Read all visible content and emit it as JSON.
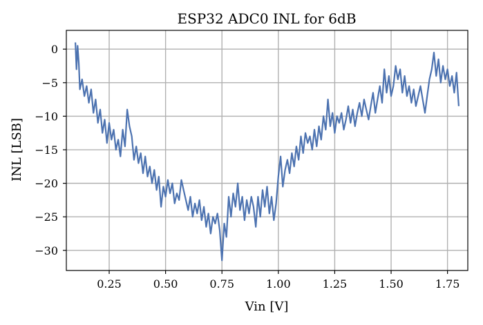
{
  "chart_data": {
    "type": "line",
    "title": "ESP32 ADC0 INL for 6dB",
    "xlabel": "Vin [V]",
    "ylabel": "INL [LSB]",
    "xlim": [
      0.06,
      1.84
    ],
    "ylim": [
      -33,
      2.8
    ],
    "xticks": [
      0.25,
      0.5,
      0.75,
      1.0,
      1.25,
      1.5,
      1.75
    ],
    "xtick_labels": [
      "0.25",
      "0.50",
      "0.75",
      "1.00",
      "1.25",
      "1.50",
      "1.75"
    ],
    "yticks": [
      0,
      -5,
      -10,
      -15,
      -20,
      -25,
      -30
    ],
    "ytick_labels": [
      "0",
      "−5",
      "−10",
      "−15",
      "−20",
      "−25",
      "−30"
    ],
    "grid": true,
    "series": [
      {
        "color": "#4c72b0",
        "x": [
          0.1,
          0.105,
          0.11,
          0.115,
          0.12,
          0.13,
          0.14,
          0.15,
          0.16,
          0.17,
          0.18,
          0.19,
          0.2,
          0.21,
          0.22,
          0.23,
          0.24,
          0.25,
          0.26,
          0.27,
          0.28,
          0.29,
          0.3,
          0.31,
          0.32,
          0.33,
          0.34,
          0.35,
          0.36,
          0.37,
          0.38,
          0.39,
          0.4,
          0.41,
          0.42,
          0.43,
          0.44,
          0.45,
          0.46,
          0.47,
          0.48,
          0.49,
          0.5,
          0.51,
          0.52,
          0.53,
          0.54,
          0.55,
          0.56,
          0.57,
          0.58,
          0.59,
          0.6,
          0.61,
          0.62,
          0.63,
          0.64,
          0.65,
          0.66,
          0.67,
          0.68,
          0.69,
          0.7,
          0.71,
          0.72,
          0.73,
          0.74,
          0.75,
          0.76,
          0.77,
          0.78,
          0.79,
          0.8,
          0.81,
          0.82,
          0.83,
          0.84,
          0.85,
          0.86,
          0.87,
          0.88,
          0.89,
          0.9,
          0.91,
          0.92,
          0.93,
          0.94,
          0.95,
          0.96,
          0.97,
          0.98,
          0.99,
          1.0,
          1.01,
          1.02,
          1.03,
          1.04,
          1.05,
          1.06,
          1.07,
          1.08,
          1.09,
          1.1,
          1.11,
          1.12,
          1.13,
          1.14,
          1.15,
          1.16,
          1.17,
          1.18,
          1.19,
          1.2,
          1.21,
          1.22,
          1.23,
          1.24,
          1.25,
          1.26,
          1.27,
          1.28,
          1.29,
          1.3,
          1.31,
          1.32,
          1.33,
          1.34,
          1.35,
          1.36,
          1.37,
          1.38,
          1.39,
          1.4,
          1.41,
          1.42,
          1.43,
          1.44,
          1.45,
          1.46,
          1.47,
          1.48,
          1.49,
          1.5,
          1.51,
          1.52,
          1.53,
          1.54,
          1.55,
          1.56,
          1.57,
          1.58,
          1.59,
          1.6,
          1.61,
          1.62,
          1.63,
          1.64,
          1.65,
          1.66,
          1.67,
          1.68,
          1.69,
          1.7,
          1.71,
          1.72,
          1.73,
          1.74,
          1.75,
          1.76,
          1.77,
          1.78,
          1.79,
          1.8
        ],
        "values": [
          1.0,
          -3.0,
          0.5,
          -2.0,
          -6.0,
          -4.5,
          -7.0,
          -5.5,
          -8.0,
          -6.0,
          -9.5,
          -7.5,
          -11.0,
          -9.0,
          -12.5,
          -10.5,
          -14.0,
          -11.0,
          -13.5,
          -12.0,
          -15.0,
          -13.5,
          -16.0,
          -12.0,
          -14.5,
          -9.0,
          -11.5,
          -13.0,
          -16.5,
          -14.5,
          -17.0,
          -15.5,
          -18.5,
          -16.0,
          -19.0,
          -17.5,
          -20.0,
          -18.0,
          -21.0,
          -19.0,
          -23.5,
          -20.5,
          -22.0,
          -19.5,
          -21.5,
          -20.0,
          -23.0,
          -21.5,
          -22.5,
          -19.5,
          -21.0,
          -22.5,
          -24.0,
          -22.0,
          -25.0,
          -23.0,
          -24.5,
          -22.5,
          -25.5,
          -23.5,
          -26.5,
          -24.5,
          -27.5,
          -25.0,
          -26.0,
          -24.5,
          -27.0,
          -31.5,
          -26.0,
          -28.0,
          -22.0,
          -25.0,
          -21.5,
          -23.5,
          -20.0,
          -24.0,
          -22.0,
          -25.5,
          -22.5,
          -24.5,
          -22.0,
          -23.5,
          -26.5,
          -22.0,
          -25.0,
          -21.0,
          -23.5,
          -20.5,
          -24.5,
          -22.0,
          -25.5,
          -23.0,
          -19.0,
          -16.0,
          -20.5,
          -18.0,
          -16.5,
          -18.5,
          -15.5,
          -17.5,
          -14.5,
          -16.5,
          -13.0,
          -15.5,
          -12.5,
          -14.0,
          -13.0,
          -15.0,
          -12.0,
          -14.5,
          -11.5,
          -13.5,
          -10.0,
          -12.0,
          -7.5,
          -11.5,
          -9.5,
          -12.5,
          -10.0,
          -11.0,
          -9.5,
          -12.0,
          -10.5,
          -8.5,
          -11.0,
          -9.0,
          -11.5,
          -9.5,
          -8.0,
          -10.0,
          -7.5,
          -9.0,
          -10.5,
          -8.5,
          -6.5,
          -9.5,
          -7.5,
          -5.5,
          -8.0,
          -3.0,
          -6.5,
          -4.0,
          -7.0,
          -5.5,
          -2.5,
          -4.5,
          -3.0,
          -6.5,
          -4.0,
          -7.0,
          -5.5,
          -8.0,
          -6.0,
          -8.5,
          -7.0,
          -5.5,
          -7.5,
          -9.5,
          -7.0,
          -4.5,
          -3.0,
          -0.5,
          -4.0,
          -1.5,
          -5.0,
          -2.5,
          -4.5,
          -3.0,
          -5.5,
          -4.0,
          -6.5,
          -3.5,
          -8.5
        ]
      }
    ]
  }
}
